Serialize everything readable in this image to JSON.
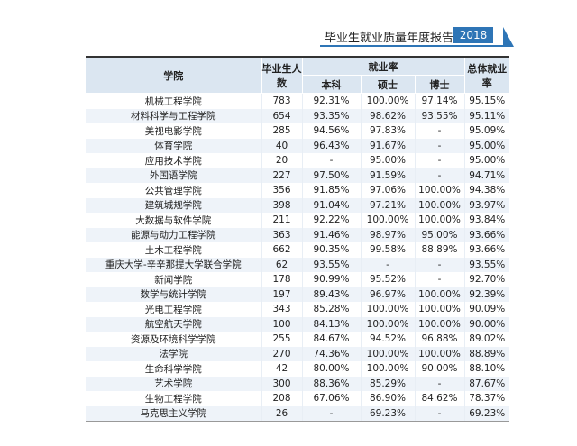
{
  "header": {
    "title": "毕业生就业质量年度报告",
    "year": "2018 届"
  },
  "table": {
    "columns": {
      "college": "学院",
      "graduates": "毕业生人数",
      "rate": "就业率",
      "bachelor": "本科",
      "master": "硕士",
      "doctor": "博士",
      "overall": "总体就业率"
    },
    "rows": [
      [
        "机械工程学院",
        "783",
        "92.31%",
        "100.00%",
        "97.14%",
        "95.15%"
      ],
      [
        "材料科学与工程学院",
        "654",
        "93.35%",
        "98.62%",
        "93.55%",
        "95.11%"
      ],
      [
        "美视电影学院",
        "285",
        "94.56%",
        "97.83%",
        "-",
        "95.09%"
      ],
      [
        "体育学院",
        "40",
        "96.43%",
        "91.67%",
        "-",
        "95.00%"
      ],
      [
        "应用技术学院",
        "20",
        "-",
        "95.00%",
        "-",
        "95.00%"
      ],
      [
        "外国语学院",
        "227",
        "97.50%",
        "91.59%",
        "-",
        "94.71%"
      ],
      [
        "公共管理学院",
        "356",
        "91.85%",
        "97.06%",
        "100.00%",
        "94.38%"
      ],
      [
        "建筑城规学院",
        "398",
        "91.04%",
        "97.21%",
        "100.00%",
        "93.97%"
      ],
      [
        "大数据与软件学院",
        "211",
        "92.22%",
        "100.00%",
        "100.00%",
        "93.84%"
      ],
      [
        "能源与动力工程学院",
        "363",
        "91.46%",
        "98.97%",
        "95.00%",
        "93.66%"
      ],
      [
        "土木工程学院",
        "662",
        "90.35%",
        "99.58%",
        "88.89%",
        "93.66%"
      ],
      [
        "重庆大学-辛辛那提大学联合学院",
        "62",
        "93.55%",
        "-",
        "-",
        "93.55%"
      ],
      [
        "新闻学院",
        "178",
        "90.99%",
        "95.52%",
        "-",
        "92.70%"
      ],
      [
        "数学与统计学院",
        "197",
        "89.43%",
        "96.97%",
        "100.00%",
        "92.39%"
      ],
      [
        "光电工程学院",
        "343",
        "85.28%",
        "100.00%",
        "100.00%",
        "90.09%"
      ],
      [
        "航空航天学院",
        "100",
        "84.13%",
        "100.00%",
        "100.00%",
        "90.00%"
      ],
      [
        "资源及环境科学学院",
        "255",
        "84.67%",
        "94.52%",
        "96.88%",
        "89.02%"
      ],
      [
        "法学院",
        "270",
        "74.36%",
        "100.00%",
        "100.00%",
        "88.89%"
      ],
      [
        "生命科学学院",
        "42",
        "80.00%",
        "100.00%",
        "90.00%",
        "88.10%"
      ],
      [
        "艺术学院",
        "300",
        "88.36%",
        "85.29%",
        "-",
        "87.67%"
      ],
      [
        "生物工程学院",
        "208",
        "67.06%",
        "86.90%",
        "84.62%",
        "78.37%"
      ],
      [
        "马克思主义学院",
        "26",
        "-",
        "69.23%",
        "-",
        "69.23%"
      ]
    ]
  }
}
